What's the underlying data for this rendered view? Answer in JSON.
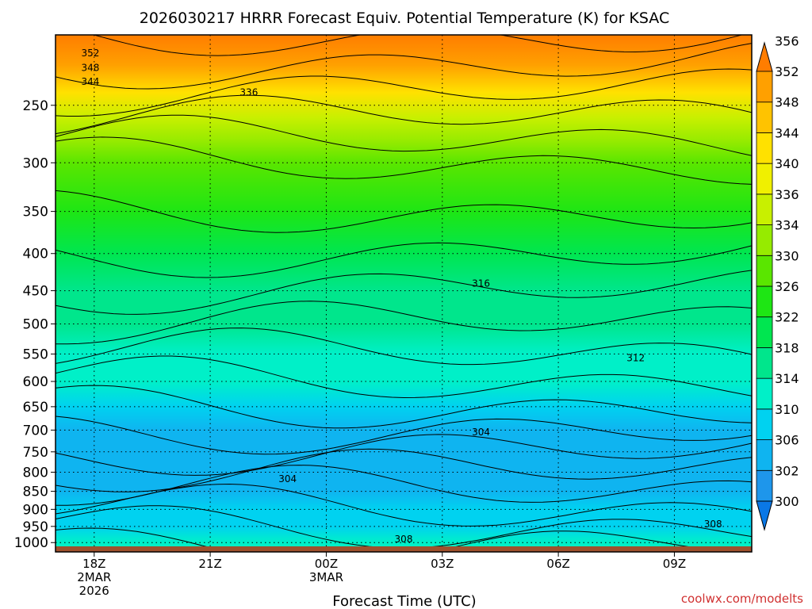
{
  "chart_data": {
    "type": "heatmap",
    "title": "2026030217 HRRR Forecast Equiv. Potential Temperature (K) for KSAC",
    "xlabel": "Forecast Time (UTC)",
    "ylabel": "",
    "credit": "coolwx.com/modelts",
    "x_range_hours": [
      -1,
      17
    ],
    "x_ticks": [
      {
        "hour": 0,
        "lines": [
          "18Z",
          "2MAR",
          "2026"
        ]
      },
      {
        "hour": 3,
        "lines": [
          "21Z"
        ]
      },
      {
        "hour": 6,
        "lines": [
          "00Z",
          "3MAR"
        ]
      },
      {
        "hour": 9,
        "lines": [
          "03Z"
        ]
      },
      {
        "hour": 12,
        "lines": [
          "06Z"
        ]
      },
      {
        "hour": 15,
        "lines": [
          "09Z"
        ]
      }
    ],
    "y_range_hPa": [
      1030,
      200
    ],
    "y_ticks": [
      250,
      300,
      350,
      400,
      450,
      500,
      550,
      600,
      650,
      700,
      750,
      800,
      850,
      900,
      950,
      1000
    ],
    "colorbar": {
      "levels": [
        300,
        302,
        306,
        310,
        314,
        318,
        322,
        326,
        330,
        334,
        336,
        340,
        344,
        348,
        352,
        356
      ],
      "labels": [
        "300",
        "302",
        "306",
        "310",
        "314",
        "318",
        "322",
        "326",
        "330",
        "334",
        "336",
        "340",
        "344",
        "348",
        "352",
        "356"
      ],
      "colors": [
        "#0a78e6",
        "#1e96eb",
        "#0fb4f0",
        "#00d2f0",
        "#00f0c8",
        "#00e68c",
        "#00e650",
        "#1ee614",
        "#5ae600",
        "#96eb00",
        "#c8f000",
        "#f0f000",
        "#ffe100",
        "#ffc300",
        "#ffa000",
        "#ff7d00"
      ],
      "extend": "both"
    },
    "contour_labels": [
      {
        "text": "352",
        "hour": -0.1,
        "p": 212
      },
      {
        "text": "348",
        "hour": -0.1,
        "p": 222
      },
      {
        "text": "344",
        "hour": -0.1,
        "p": 232
      },
      {
        "text": "336",
        "hour": 4,
        "p": 240
      },
      {
        "text": "316",
        "hour": 10,
        "p": 440
      },
      {
        "text": "312",
        "hour": 14,
        "p": 557
      },
      {
        "text": "304",
        "hour": 10,
        "p": 705
      },
      {
        "text": "304",
        "hour": 5,
        "p": 817
      },
      {
        "text": "308",
        "hour": 16,
        "p": 943
      },
      {
        "text": "308",
        "hour": 8,
        "p": 990
      }
    ],
    "profile": [
      {
        "p": 200,
        "v": 355
      },
      {
        "p": 220,
        "v": 348
      },
      {
        "p": 240,
        "v": 340
      },
      {
        "p": 260,
        "v": 334
      },
      {
        "p": 280,
        "v": 331
      },
      {
        "p": 300,
        "v": 328
      },
      {
        "p": 350,
        "v": 325
      },
      {
        "p": 400,
        "v": 320
      },
      {
        "p": 450,
        "v": 316
      },
      {
        "p": 500,
        "v": 314
      },
      {
        "p": 550,
        "v": 312
      },
      {
        "p": 600,
        "v": 310
      },
      {
        "p": 650,
        "v": 307
      },
      {
        "p": 700,
        "v": 305
      },
      {
        "p": 750,
        "v": 304
      },
      {
        "p": 800,
        "v": 303.5
      },
      {
        "p": 850,
        "v": 304
      },
      {
        "p": 900,
        "v": 306
      },
      {
        "p": 950,
        "v": 308
      },
      {
        "p": 1000,
        "v": 311
      }
    ],
    "surface_pressure_hPa": 1012,
    "grid": true
  }
}
